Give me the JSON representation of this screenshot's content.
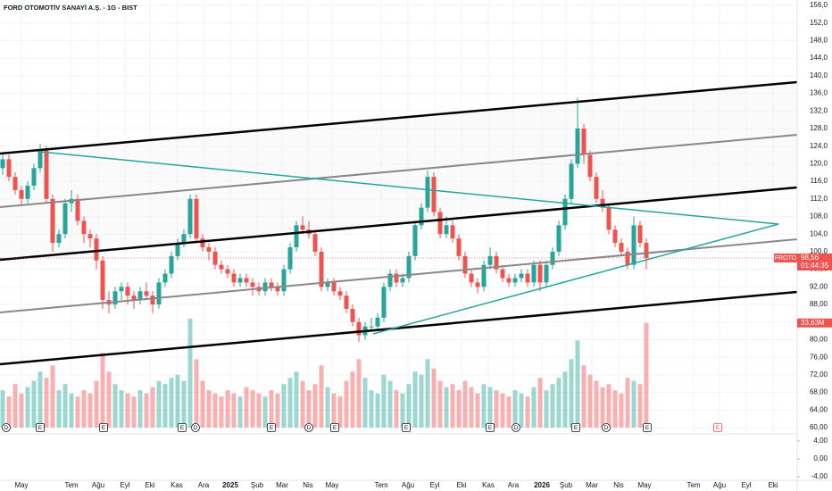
{
  "header": {
    "title": "FORD OTOMOTİV SANAYİ A.Ş. - 1G - BIST"
  },
  "chart_data": {
    "type": "candlestick",
    "up_color": "#26a69a",
    "down_color": "#ef5350",
    "ylim": [
      60,
      156
    ],
    "yticks": [
      {
        "value": 156,
        "label": "156,0"
      },
      {
        "value": 152,
        "label": "152,0"
      },
      {
        "value": 148,
        "label": "148,0"
      },
      {
        "value": 144,
        "label": "144,0"
      },
      {
        "value": 140,
        "label": "140,0"
      },
      {
        "value": 136,
        "label": "136,0"
      },
      {
        "value": 132,
        "label": "132,0"
      },
      {
        "value": 128,
        "label": "128,0"
      },
      {
        "value": 124,
        "label": "124,0"
      },
      {
        "value": 120,
        "label": "120,0"
      },
      {
        "value": 116,
        "label": "116,0"
      },
      {
        "value": 112,
        "label": "112,0"
      },
      {
        "value": 108,
        "label": "108,0"
      },
      {
        "value": 104,
        "label": "104,0"
      },
      {
        "value": 100,
        "label": "100,0"
      },
      {
        "value": 96,
        "label": "96,00"
      },
      {
        "value": 92,
        "label": "92,00"
      },
      {
        "value": 88,
        "label": "88,00"
      },
      {
        "value": 84,
        "label": "84,00"
      },
      {
        "value": 80,
        "label": "80,00"
      },
      {
        "value": 76,
        "label": "76,00"
      },
      {
        "value": 72,
        "label": "72,00"
      },
      {
        "value": 68,
        "label": "68,00"
      },
      {
        "value": 64,
        "label": "64,00"
      },
      {
        "value": 60,
        "label": "60,00"
      }
    ],
    "grid": true,
    "candles": [
      [
        119,
        122.5,
        117.5,
        121
      ],
      [
        121,
        122,
        116,
        117
      ],
      [
        117,
        118,
        113,
        114
      ],
      [
        114,
        115,
        110.5,
        112
      ],
      [
        112,
        116,
        111,
        115
      ],
      [
        115,
        120,
        114,
        119
      ],
      [
        119,
        124.5,
        118,
        123
      ],
      [
        123,
        124,
        111,
        112
      ],
      [
        112,
        113,
        100,
        102
      ],
      [
        102,
        105,
        101,
        104
      ],
      [
        104,
        112,
        103,
        111
      ],
      [
        111,
        114,
        109,
        112
      ],
      [
        112,
        113,
        106,
        107
      ],
      [
        107,
        108,
        102,
        104
      ],
      [
        104,
        105,
        101,
        103
      ],
      [
        103,
        104,
        96,
        98
      ],
      [
        98,
        99,
        87,
        89
      ],
      [
        89,
        91,
        86,
        88
      ],
      [
        88,
        92,
        87,
        91
      ],
      [
        91,
        93,
        89,
        92
      ],
      [
        92,
        93,
        88,
        90
      ],
      [
        90,
        91,
        87,
        89
      ],
      [
        89,
        92,
        88,
        91
      ],
      [
        91,
        93,
        89,
        90
      ],
      [
        90,
        91,
        86,
        88
      ],
      [
        88,
        94,
        87,
        93
      ],
      [
        93,
        96,
        92,
        95
      ],
      [
        95,
        100,
        94,
        99
      ],
      [
        99,
        103,
        98,
        102
      ],
      [
        102,
        105,
        101,
        104
      ],
      [
        104,
        113,
        103,
        112
      ],
      [
        112,
        113,
        102,
        103
      ],
      [
        103,
        104,
        100,
        101
      ],
      [
        101,
        102,
        98,
        100
      ],
      [
        100,
        101,
        96,
        97
      ],
      [
        97,
        98,
        95,
        96
      ],
      [
        96,
        97,
        94,
        95
      ],
      [
        95,
        96,
        92,
        93
      ],
      [
        93,
        95,
        92,
        94
      ],
      [
        94,
        95,
        92,
        93
      ],
      [
        93,
        94,
        90,
        92
      ],
      [
        92,
        93,
        90,
        91
      ],
      [
        91,
        94,
        90,
        93
      ],
      [
        93,
        94,
        91,
        92
      ],
      [
        92,
        93,
        90,
        91
      ],
      [
        91,
        97,
        90,
        96
      ],
      [
        96,
        102,
        95,
        101
      ],
      [
        101,
        107,
        100,
        106
      ],
      [
        106,
        108,
        104,
        105
      ],
      [
        105,
        107,
        103,
        104
      ],
      [
        104,
        105,
        99,
        100
      ],
      [
        100,
        101,
        91,
        92
      ],
      [
        92,
        94,
        91,
        93
      ],
      [
        93,
        94,
        90,
        91
      ],
      [
        91,
        92,
        89,
        90
      ],
      [
        90,
        91,
        86,
        87
      ],
      [
        87,
        88,
        83,
        84
      ],
      [
        84,
        85,
        79.5,
        81
      ],
      [
        81,
        84,
        80,
        83
      ],
      [
        83,
        85,
        82,
        83
      ],
      [
        83,
        86,
        82,
        85
      ],
      [
        85,
        93,
        84,
        92
      ],
      [
        92,
        96,
        91,
        95
      ],
      [
        95,
        96,
        92,
        93
      ],
      [
        93,
        95,
        92,
        94
      ],
      [
        94,
        100,
        93,
        99
      ],
      [
        99,
        107,
        98,
        106
      ],
      [
        106,
        111,
        105,
        110
      ],
      [
        110,
        118.5,
        109,
        117
      ],
      [
        117,
        118,
        108,
        109
      ],
      [
        109,
        110,
        103,
        104
      ],
      [
        104,
        108,
        103,
        106
      ],
      [
        106,
        107,
        102,
        103
      ],
      [
        103,
        104,
        98,
        99
      ],
      [
        99,
        100,
        94,
        95
      ],
      [
        95,
        96,
        92,
        93
      ],
      [
        93,
        94,
        90.5,
        92
      ],
      [
        92,
        98,
        91,
        97
      ],
      [
        97,
        101,
        96,
        99
      ],
      [
        99,
        100,
        95,
        96
      ],
      [
        96,
        97,
        93,
        94
      ],
      [
        94,
        95,
        92,
        93
      ],
      [
        93,
        95,
        92,
        94
      ],
      [
        94,
        96,
        93,
        95
      ],
      [
        95,
        96,
        92,
        93
      ],
      [
        93,
        98,
        92,
        97
      ],
      [
        97,
        98,
        91,
        93
      ],
      [
        93,
        98,
        92,
        97
      ],
      [
        97,
        101,
        96,
        100
      ],
      [
        100,
        107,
        99,
        106
      ],
      [
        106,
        113,
        105,
        112
      ],
      [
        112,
        121,
        111,
        120
      ],
      [
        120,
        135,
        119,
        128
      ],
      [
        128,
        129,
        120,
        122
      ],
      [
        122,
        123,
        116,
        117
      ],
      [
        117,
        118,
        111,
        112
      ],
      [
        112,
        114,
        109,
        110
      ],
      [
        110,
        111,
        104,
        105
      ],
      [
        105,
        106,
        101,
        102
      ],
      [
        102,
        103,
        99,
        100
      ],
      [
        100,
        101,
        96,
        97
      ],
      [
        97,
        108,
        96,
        106
      ],
      [
        106,
        107,
        101,
        102
      ],
      [
        102,
        103,
        96,
        98.56
      ]
    ],
    "volumes": [
      12,
      10,
      14,
      11,
      13,
      15,
      18,
      16,
      20,
      12,
      14,
      11,
      10,
      12,
      11,
      15,
      24,
      18,
      14,
      12,
      11,
      10,
      12,
      11,
      13,
      15,
      14,
      16,
      17,
      15,
      35,
      22,
      15,
      12,
      11,
      10,
      12,
      11,
      10,
      13,
      12,
      11,
      10,
      12,
      11,
      14,
      16,
      18,
      15,
      12,
      14,
      20,
      13,
      11,
      10,
      15,
      18,
      22,
      16,
      12,
      11,
      17,
      15,
      12,
      11,
      14,
      18,
      17,
      22,
      19,
      15,
      13,
      14,
      12,
      15,
      13,
      11,
      14,
      13,
      12,
      11,
      10,
      12,
      11,
      10,
      13,
      16,
      12,
      14,
      16,
      18,
      22,
      28,
      20,
      17,
      15,
      13,
      14,
      12,
      11,
      16,
      15,
      14,
      33.63
    ],
    "symbol": "FROTO",
    "last_close_label": "98,56",
    "countdown": "01:44:35",
    "last_volume_label": "33,63M",
    "indicator_ylim": [
      -5,
      5
    ],
    "indicator_yticks": [
      {
        "value": 4,
        "label": "4,00"
      },
      {
        "value": 0,
        "label": "0,00"
      },
      {
        "value": -4,
        "label": "-4,00"
      }
    ],
    "x_labels": [
      "May",
      "Tem",
      "Ağu",
      "Eyl",
      "Eki",
      "Kas",
      "Ara",
      "2025",
      "Şub",
      "Mar",
      "Nis",
      "May",
      "Tem",
      "Ağu",
      "Eyl",
      "Eki",
      "Kas",
      "Ara",
      "2026",
      "Şub",
      "Mar",
      "Nis",
      "May",
      "Tem",
      "Ağu",
      "Eyl",
      "Eki"
    ],
    "events": [
      "D",
      "E",
      "E",
      "E",
      "D",
      "E",
      "D",
      "E",
      "E",
      "E",
      "D",
      "E",
      "D",
      "E",
      "E"
    ]
  }
}
